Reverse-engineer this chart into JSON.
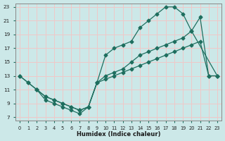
{
  "background_color": "#cce8e8",
  "grid_color": "#f0c8c8",
  "line_color": "#1e6e5e",
  "xlabel": "Humidex (Indice chaleur)",
  "xlim": [
    -0.5,
    23.5
  ],
  "ylim": [
    6.5,
    23.5
  ],
  "xticks": [
    0,
    1,
    2,
    3,
    4,
    5,
    6,
    7,
    8,
    9,
    10,
    11,
    12,
    13,
    14,
    15,
    16,
    17,
    18,
    19,
    20,
    21,
    22,
    23
  ],
  "yticks": [
    7,
    9,
    11,
    13,
    15,
    17,
    19,
    21,
    23
  ],
  "line1_x": [
    0,
    1,
    2,
    3,
    4,
    5,
    6,
    7,
    8,
    9,
    10,
    11,
    12,
    13,
    14,
    15,
    16,
    17,
    18,
    19,
    20,
    23
  ],
  "line1_y": [
    13,
    12,
    11,
    10,
    9.5,
    9,
    8.5,
    8,
    8.5,
    12,
    16,
    17,
    17.5,
    18,
    20,
    21,
    22,
    23,
    23,
    22,
    19.5,
    13
  ],
  "line2_x": [
    0,
    1,
    2,
    3,
    4,
    5,
    6,
    7,
    8,
    9,
    10,
    11,
    12,
    13,
    14,
    15,
    16,
    17,
    18,
    19,
    20,
    21,
    22,
    23
  ],
  "line2_y": [
    13,
    12,
    11,
    10,
    9.5,
    9,
    8.5,
    8,
    8.5,
    12,
    13,
    13.5,
    14,
    15,
    16,
    16.5,
    17,
    17.5,
    18,
    18.5,
    19.5,
    21.5,
    13,
    13
  ],
  "line3_x": [
    2,
    3,
    4,
    5,
    6,
    7,
    8,
    9,
    10,
    11,
    12,
    13,
    14,
    15,
    16,
    17,
    18,
    19,
    20,
    21,
    22,
    23
  ],
  "line3_y": [
    11,
    9.5,
    9,
    8.5,
    8,
    7.5,
    8.5,
    12,
    12.5,
    13,
    13.5,
    14,
    14.5,
    15,
    15.5,
    16,
    16.5,
    17,
    17.5,
    18,
    13,
    13
  ]
}
